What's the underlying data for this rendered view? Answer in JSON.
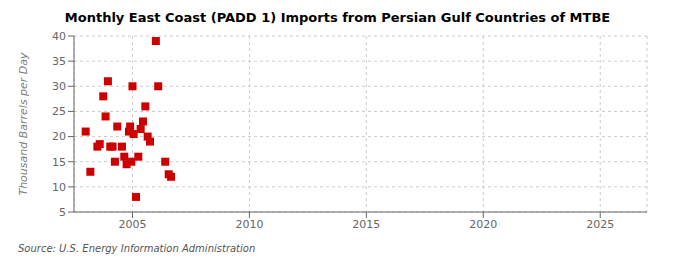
{
  "chart_data": {
    "type": "scatter",
    "title": "Monthly East Coast (PADD 1) Imports from Persian Gulf Countries of MTBE",
    "ylabel": "Thousand Barrels per Day",
    "source": "Source: U.S. Energy Information Administration",
    "x": [
      2003.0,
      2003.2,
      2003.5,
      2003.6,
      2003.75,
      2003.85,
      2003.95,
      2004.05,
      2004.15,
      2004.25,
      2004.35,
      2004.55,
      2004.65,
      2004.75,
      2004.85,
      2004.9,
      2004.95,
      2005.0,
      2005.05,
      2005.15,
      2005.25,
      2005.35,
      2005.45,
      2005.55,
      2005.65,
      2005.75,
      2006.0,
      2006.1,
      2006.4,
      2006.55,
      2006.65
    ],
    "values": [
      21.0,
      13.0,
      18.0,
      18.5,
      28.0,
      24.0,
      31.0,
      18.0,
      18.0,
      15.0,
      22.0,
      18.0,
      16.0,
      14.5,
      21.0,
      22.0,
      15.0,
      30.0,
      20.5,
      8.0,
      16.0,
      21.5,
      23.0,
      26.0,
      20.0,
      19.0,
      39.0,
      30.0,
      15.0,
      12.5,
      12.0
    ],
    "color": "#cc0000",
    "marker": "square",
    "xlim": [
      2002.5,
      2027
    ],
    "ylim": [
      5,
      40
    ],
    "xticks": [
      2005,
      2010,
      2015,
      2020,
      2025
    ],
    "yticks": [
      5,
      10,
      15,
      20,
      25,
      30,
      35,
      40
    ],
    "grid": true
  }
}
